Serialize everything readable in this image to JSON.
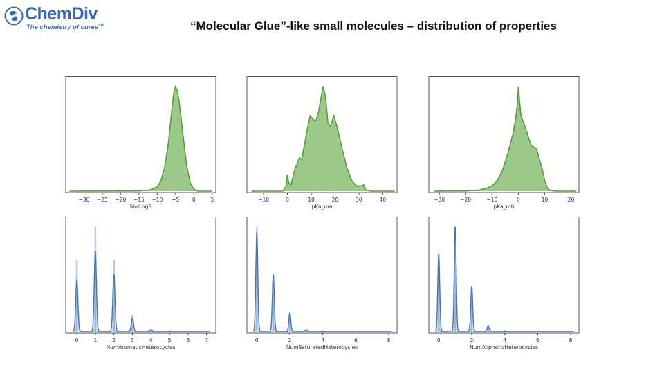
{
  "header": {
    "logo_brand": "ChemDiv",
    "logo_tagline": "The chemistry of cures",
    "logo_tagline_mark": "SM",
    "title": "“Molecular Glue”-like small molecules – distribution of properties"
  },
  "colors": {
    "green": "#5b9a3c",
    "green_fill": "#9cc98a",
    "blue": "#4a73ad",
    "blue_fill": "#a9c2e0",
    "brand": "#3a68b5"
  },
  "chart_data": [
    {
      "type": "area",
      "xlabel": "MolLogS",
      "xlim": [
        -35,
        6
      ],
      "xticks": [
        -30,
        -25,
        -20,
        -15,
        -10,
        -5,
        0,
        5
      ],
      "color": "green",
      "x": [
        -34,
        -15,
        -12,
        -10,
        -9,
        -8,
        -7,
        -6,
        -5.5,
        -5,
        -4.5,
        -4,
        -3,
        -2,
        -1,
        0,
        1,
        5
      ],
      "y": [
        0,
        0.002,
        0.01,
        0.04,
        0.1,
        0.22,
        0.45,
        0.78,
        0.93,
        1,
        0.96,
        0.85,
        0.55,
        0.25,
        0.08,
        0.02,
        0,
        0
      ]
    },
    {
      "type": "area",
      "xlabel": "pKa_ma",
      "xlim": [
        -17,
        46
      ],
      "xticks": [
        -10,
        0,
        10,
        20,
        30,
        40
      ],
      "color": "green",
      "x": [
        -15,
        -2,
        -0.5,
        0,
        0.5,
        1.5,
        3,
        5,
        6,
        8,
        9.5,
        11,
        12,
        13,
        15,
        16,
        17,
        18,
        19.5,
        21,
        23,
        25,
        27,
        29,
        31,
        32,
        33,
        35,
        45
      ],
      "y": [
        0,
        0,
        0.05,
        0.16,
        0.08,
        0.06,
        0.2,
        0.32,
        0.3,
        0.55,
        0.72,
        0.68,
        0.67,
        0.75,
        1,
        0.9,
        0.65,
        0.62,
        0.72,
        0.6,
        0.4,
        0.22,
        0.1,
        0.05,
        0.05,
        0.06,
        0.01,
        0,
        0
      ]
    },
    {
      "type": "area",
      "xlabel": "pKa_mb",
      "xlim": [
        -34,
        23
      ],
      "xticks": [
        -30,
        -20,
        -10,
        0,
        10,
        20
      ],
      "color": "green",
      "x": [
        -32,
        -20,
        -15,
        -12,
        -10,
        -8,
        -6,
        -4,
        -2,
        -1,
        -0.3,
        0,
        0.5,
        1,
        2,
        3,
        4,
        5,
        6,
        7,
        8,
        9,
        10,
        11,
        12,
        14,
        22
      ],
      "y": [
        0,
        0.002,
        0.01,
        0.03,
        0.05,
        0.1,
        0.2,
        0.36,
        0.55,
        0.7,
        0.85,
        1,
        0.85,
        0.72,
        0.65,
        0.58,
        0.5,
        0.43,
        0.42,
        0.4,
        0.3,
        0.22,
        0.1,
        0.03,
        0.01,
        0,
        0
      ]
    },
    {
      "type": "bar",
      "xlabel": "NumAromaticHeterocycles",
      "xlim": [
        -0.6,
        7.5
      ],
      "xticks": [
        0,
        1,
        2,
        3,
        4,
        5,
        6,
        7
      ],
      "color": "blue",
      "categories": [
        0,
        1,
        2,
        3,
        4,
        5
      ],
      "values": [
        0.68,
        1,
        0.69,
        0.16,
        0.02,
        0.003
      ],
      "kde_peaks": [
        0.5,
        0.77,
        0.55,
        0.13,
        0.02,
        0.003
      ]
    },
    {
      "type": "bar",
      "xlabel": "NumSaturatedHeterocycles",
      "xlim": [
        -0.6,
        8.5
      ],
      "xticks": [
        0,
        2,
        4,
        6,
        8
      ],
      "color": "blue",
      "categories": [
        0,
        1,
        2,
        3,
        4
      ],
      "values": [
        1,
        0.47,
        0.18,
        0.02,
        0.003
      ],
      "kde_peaks": [
        0.95,
        0.55,
        0.18,
        0.02,
        0.003
      ]
    },
    {
      "type": "bar",
      "xlabel": "NumAliphaticHeterocycles",
      "xlim": [
        -0.6,
        8.5
      ],
      "xticks": [
        0,
        2,
        4,
        6,
        8
      ],
      "color": "blue",
      "categories": [
        0,
        1,
        2,
        3,
        4
      ],
      "values": [
        0.74,
        1,
        0.43,
        0.06,
        0.005
      ],
      "kde_peaks": [
        0.74,
        1,
        0.43,
        0.06,
        0.005
      ]
    }
  ]
}
